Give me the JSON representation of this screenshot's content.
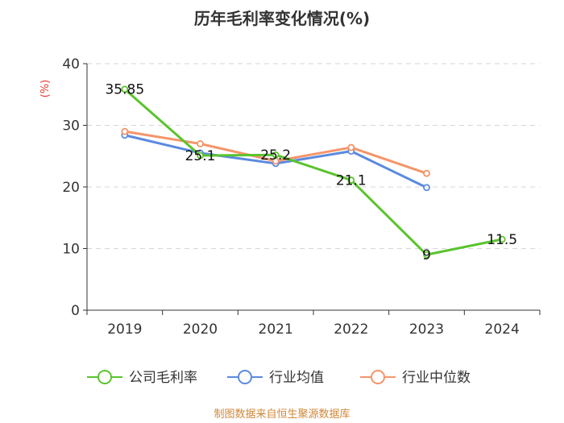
{
  "chart_data": {
    "type": "line",
    "title": "历年毛利率变化情况(%)",
    "xlabel": "",
    "ylabel": "(%)",
    "categories": [
      "2019",
      "2020",
      "2021",
      "2022",
      "2023",
      "2024"
    ],
    "ylim": [
      0,
      40
    ],
    "yticks": [
      "0",
      "10",
      "20",
      "30",
      "40"
    ],
    "grid": true,
    "legend_position": "bottom",
    "series": [
      {
        "name": "公司毛利率",
        "color": "#5ac42e",
        "values": [
          35.85,
          25.1,
          25.2,
          21.1,
          9,
          11.5
        ],
        "labels": [
          "35.85",
          "25.1",
          "25.2",
          "21.1",
          "9",
          "11.5"
        ]
      },
      {
        "name": "行业均值",
        "color": "#5b8ae0",
        "values": [
          28.4,
          25.5,
          23.8,
          25.8,
          19.9,
          null
        ]
      },
      {
        "name": "行业中位数",
        "color": "#f4956a",
        "values": [
          29.0,
          27.0,
          24.2,
          26.4,
          22.2,
          null
        ]
      }
    ],
    "source": "制图数据来自恒生聚源数据库"
  }
}
